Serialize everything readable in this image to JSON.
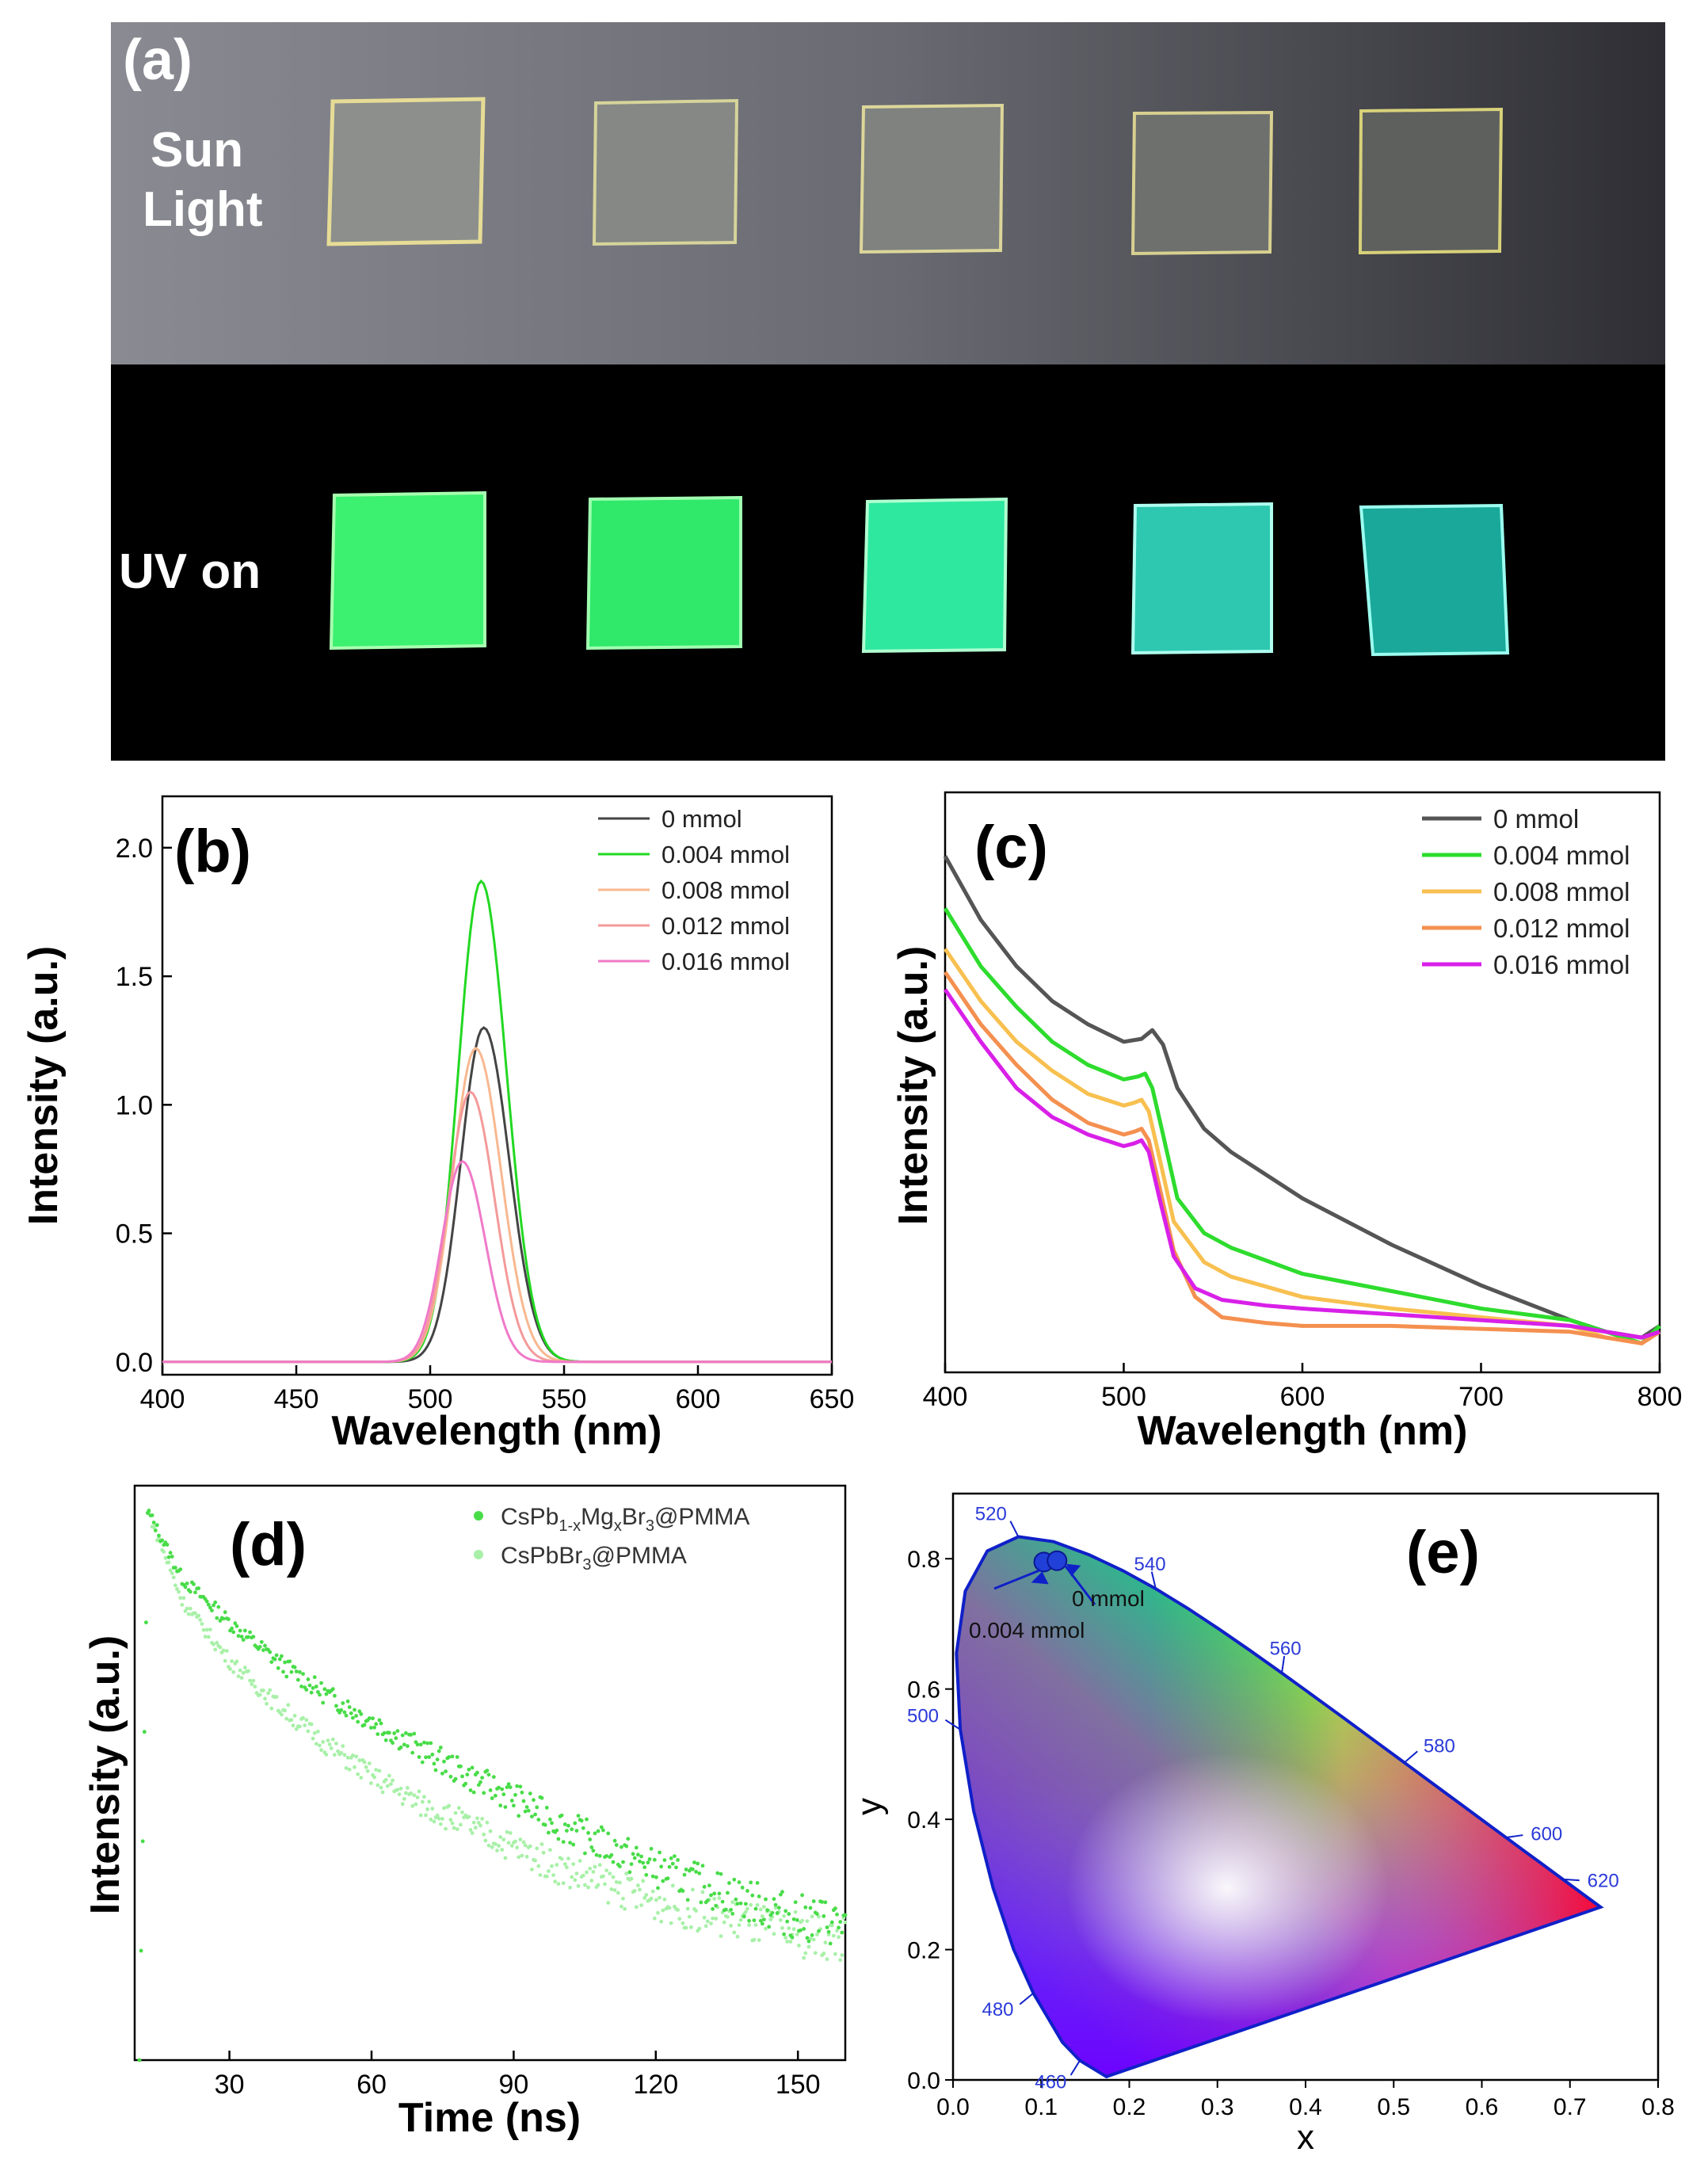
{
  "panel_a": {
    "label": "(a)",
    "row_sun_label_1": "Sun",
    "row_sun_label_2": "Light",
    "row_uv_label": "UV on",
    "colors": {
      "sun_background": "#6e6e78",
      "uv_background": "#000000",
      "uv_film_1": "#3cf070",
      "uv_film_2": "#30e86a",
      "uv_film_3": "#2ee8a0",
      "uv_film_4": "#2ec8b0",
      "uv_film_5": "#1aa89a"
    }
  },
  "chart_data": [
    {
      "panel": "(b)",
      "type": "line",
      "xlabel": "Wavelength (nm)",
      "ylabel": "Intensity (a.u.)",
      "xlim": [
        400,
        650
      ],
      "ylim": [
        -0.05,
        2.2
      ],
      "xticks": [
        400,
        450,
        500,
        550,
        600,
        650
      ],
      "yticks": [
        0.0,
        0.5,
        1.0,
        1.5,
        2.0
      ],
      "ytick_labels": [
        "0.0",
        "0.5",
        "1.0",
        "1.5",
        "2.0"
      ],
      "legend": "top-right",
      "series": [
        {
          "name": "0 mmol",
          "color": "#444444",
          "peak_x": 520,
          "peak_y": 1.3,
          "fwhm": 20
        },
        {
          "name": "0.004 mmol",
          "color": "#22d822",
          "peak_x": 519,
          "peak_y": 1.87,
          "fwhm": 20
        },
        {
          "name": "0.008 mmol",
          "color": "#f8b890",
          "peak_x": 517,
          "peak_y": 1.22,
          "fwhm": 20
        },
        {
          "name": "0.012 mmol",
          "color": "#f49a9a",
          "peak_x": 515,
          "peak_y": 1.05,
          "fwhm": 19
        },
        {
          "name": "0.016 mmol",
          "color": "#f07ac8",
          "peak_x": 512,
          "peak_y": 0.78,
          "fwhm": 18
        }
      ]
    },
    {
      "panel": "(c)",
      "type": "line",
      "xlabel": "Wavelength (nm)",
      "ylabel": "Intensity (a.u.)",
      "xlim": [
        400,
        800
      ],
      "ylim": [
        0,
        1
      ],
      "xticks": [
        400,
        500,
        600,
        700,
        800
      ],
      "legend": "top-right",
      "series": [
        {
          "name": "0 mmol",
          "color": "#555555",
          "x": [
            400,
            420,
            440,
            460,
            480,
            500,
            510,
            516,
            522,
            530,
            545,
            560,
            600,
            650,
            700,
            750,
            770,
            790,
            800
          ],
          "y": [
            0.89,
            0.78,
            0.7,
            0.64,
            0.6,
            0.57,
            0.575,
            0.59,
            0.565,
            0.49,
            0.42,
            0.38,
            0.3,
            0.22,
            0.15,
            0.09,
            0.07,
            0.06,
            0.08
          ]
        },
        {
          "name": "0.004 mmol",
          "color": "#2edc2e",
          "x": [
            400,
            420,
            440,
            460,
            480,
            500,
            508,
            512,
            516,
            522,
            530,
            545,
            560,
            600,
            650,
            700,
            750,
            770,
            790,
            800
          ],
          "y": [
            0.8,
            0.7,
            0.63,
            0.57,
            0.53,
            0.505,
            0.51,
            0.515,
            0.49,
            0.41,
            0.3,
            0.24,
            0.215,
            0.17,
            0.14,
            0.11,
            0.09,
            0.07,
            0.05,
            0.08
          ]
        },
        {
          "name": "0.008 mmol",
          "color": "#f8c050",
          "x": [
            400,
            420,
            440,
            460,
            480,
            500,
            506,
            510,
            514,
            520,
            528,
            545,
            560,
            600,
            650,
            700,
            750,
            770,
            790,
            800
          ],
          "y": [
            0.73,
            0.64,
            0.57,
            0.52,
            0.48,
            0.46,
            0.465,
            0.47,
            0.45,
            0.37,
            0.26,
            0.19,
            0.165,
            0.13,
            0.11,
            0.095,
            0.08,
            0.06,
            0.05,
            0.07
          ]
        },
        {
          "name": "0.012 mmol",
          "color": "#f49050",
          "x": [
            400,
            420,
            440,
            460,
            480,
            500,
            506,
            510,
            514,
            520,
            528,
            540,
            555,
            580,
            600,
            650,
            700,
            750,
            770,
            790,
            800
          ],
          "y": [
            0.69,
            0.6,
            0.53,
            0.47,
            0.43,
            0.41,
            0.415,
            0.42,
            0.4,
            0.32,
            0.21,
            0.13,
            0.095,
            0.085,
            0.08,
            0.08,
            0.075,
            0.07,
            0.06,
            0.05,
            0.07
          ]
        },
        {
          "name": "0.016 mmol",
          "color": "#d820e8",
          "x": [
            400,
            420,
            440,
            460,
            480,
            500,
            506,
            510,
            514,
            520,
            528,
            540,
            555,
            580,
            600,
            650,
            700,
            750,
            770,
            790,
            800
          ],
          "y": [
            0.66,
            0.57,
            0.49,
            0.44,
            0.41,
            0.39,
            0.395,
            0.4,
            0.38,
            0.3,
            0.2,
            0.145,
            0.125,
            0.115,
            0.11,
            0.1,
            0.09,
            0.08,
            0.07,
            0.06,
            0.07
          ]
        }
      ]
    },
    {
      "panel": "(d)",
      "type": "scatter",
      "xlabel": "Time (ns)",
      "ylabel": "Intensity (a.u.)",
      "xlim": [
        10,
        160
      ],
      "ylim": [
        0,
        1.05
      ],
      "xticks": [
        30,
        60,
        90,
        120,
        150
      ],
      "legend": "top-right",
      "series": [
        {
          "name": "CsPb1-xMgxBr3@PMMA",
          "color": "#48dc48",
          "x": [
            13,
            20,
            30,
            40,
            50,
            60,
            70,
            80,
            90,
            100,
            110,
            120,
            130,
            140,
            150,
            160
          ],
          "y": [
            1.0,
            0.88,
            0.8,
            0.73,
            0.67,
            0.62,
            0.57,
            0.52,
            0.48,
            0.43,
            0.39,
            0.35,
            0.32,
            0.29,
            0.26,
            0.25
          ]
        },
        {
          "name": "CsPbBr3@PMMA",
          "color": "#a8f0a8",
          "x": [
            13,
            20,
            30,
            40,
            50,
            60,
            70,
            80,
            90,
            100,
            110,
            120,
            130,
            140,
            150,
            160
          ],
          "y": [
            1.0,
            0.84,
            0.73,
            0.65,
            0.58,
            0.52,
            0.47,
            0.43,
            0.39,
            0.35,
            0.32,
            0.29,
            0.27,
            0.25,
            0.23,
            0.22
          ]
        }
      ]
    },
    {
      "panel": "(e)",
      "type": "scatter",
      "xlabel": "x",
      "ylabel": "y",
      "xlim": [
        0.0,
        0.8
      ],
      "ylim": [
        0.0,
        0.9
      ],
      "xticks": [
        0.0,
        0.1,
        0.2,
        0.3,
        0.4,
        0.5,
        0.6,
        0.7,
        0.8
      ],
      "xtick_labels": [
        "0.0",
        "0.1",
        "0.2",
        "0.3",
        "0.4",
        "0.5",
        "0.6",
        "0.7",
        "0.8"
      ],
      "yticks": [
        0.0,
        0.2,
        0.4,
        0.6,
        0.8
      ],
      "ytick_labels": [
        "0.0",
        "0.2",
        "0.4",
        "0.6",
        "0.8"
      ],
      "locus_labels": [
        {
          "text": "460",
          "x": 0.144,
          "y": 0.03
        },
        {
          "text": "480",
          "x": 0.091,
          "y": 0.133
        },
        {
          "text": "500",
          "x": 0.008,
          "y": 0.538
        },
        {
          "text": "520",
          "x": 0.074,
          "y": 0.834
        },
        {
          "text": "540",
          "x": 0.23,
          "y": 0.754
        },
        {
          "text": "560",
          "x": 0.373,
          "y": 0.624
        },
        {
          "text": "580",
          "x": 0.512,
          "y": 0.487
        },
        {
          "text": "600",
          "x": 0.627,
          "y": 0.372
        },
        {
          "text": "620",
          "x": 0.691,
          "y": 0.308
        }
      ],
      "points": [
        {
          "name": "0.004 mmol",
          "x": 0.103,
          "y": 0.795,
          "color": "#2040d8"
        },
        {
          "name": "0 mmol",
          "x": 0.118,
          "y": 0.797,
          "color": "#2040d8"
        }
      ]
    }
  ]
}
